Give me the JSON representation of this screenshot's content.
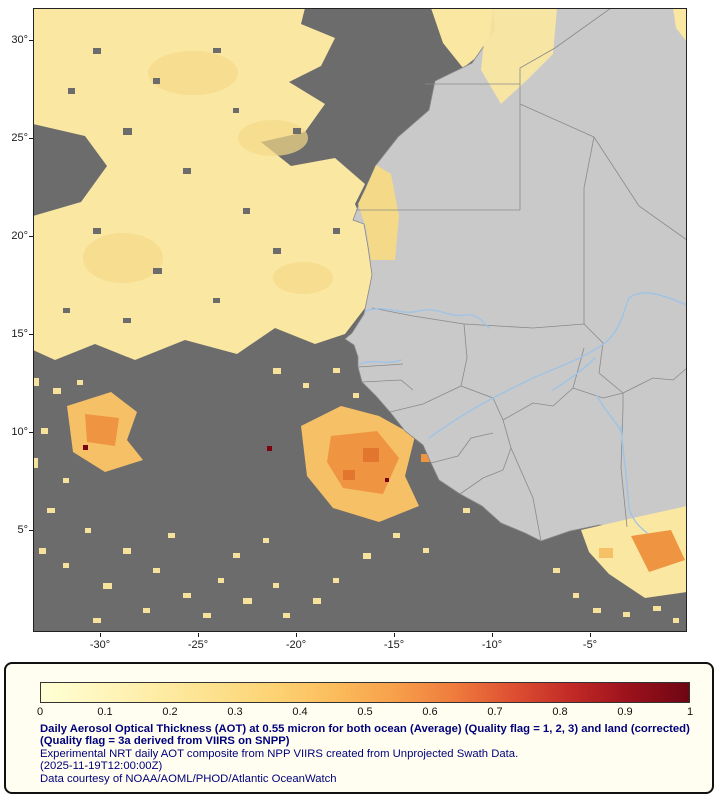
{
  "map": {
    "missing_data_color": "#6C6C6C",
    "land_color": "#C9C9C9",
    "country_border_color": "#8A8A8A",
    "river_color": "#9CC3E8",
    "aot_low_color": "#FAE7A2",
    "aot_mid_color": "#EF9440",
    "aot_high_color": "#7A0512",
    "frame_color": "#222222"
  },
  "axes": {
    "lat_ticks": [
      "30°",
      "25°",
      "20°",
      "15°",
      "10°",
      "5°"
    ],
    "lon_ticks": [
      "-30°",
      "-25°",
      "-20°",
      "-15°",
      "-10°",
      "-5°"
    ]
  },
  "legend": {
    "ticks": [
      "0",
      "0.1",
      "0.2",
      "0.3",
      "0.4",
      "0.5",
      "0.6",
      "0.7",
      "0.8",
      "0.9",
      "1"
    ],
    "colors": [
      "#FFFFD5",
      "#FFF6BE",
      "#FEECA4",
      "#FDE08C",
      "#FDD272",
      "#FBBC5C",
      "#F7A04B",
      "#EF7C3D",
      "#DE5032",
      "#C22A26",
      "#9A111B",
      "#6E0613"
    ],
    "title": "Daily Aerosol Optical Thickness (AOT) at 0.55 micron for both ocean (Average) (Quality flag = 1, 2, 3) and land (corrected) (Quality flag = 3a derived from VIIRS on SNPP)",
    "subtitle": "Experimental NRT daily AOT composite from NPP VIIRS created from Unprojected Swath Data.",
    "timestamp": "(2025-11-19T12:00:00Z)",
    "credit": "Data courtesy of NOAA/AOML/PHOD/Atlantic OceanWatch",
    "text_color": "#00007D"
  },
  "chart_data": {
    "type": "heatmap",
    "title": "Daily Aerosol Optical Thickness (AOT) at 0.55 micron",
    "variable": "Aerosol Optical Thickness (AOT)",
    "scale_min": 0,
    "scale_max": 1,
    "colorbar_ticks": [
      0,
      0.1,
      0.2,
      0.3,
      0.4,
      0.5,
      0.6,
      0.7,
      0.8,
      0.9,
      1
    ],
    "x_ticks": [
      "-30°",
      "-25°",
      "-20°",
      "-15°",
      "-10°",
      "-5°"
    ],
    "y_ticks": [
      "30°",
      "25°",
      "20°",
      "15°",
      "10°",
      "5°"
    ],
    "legend_position": "bottom",
    "region": "Eastern tropical North Atlantic and West Africa"
  }
}
